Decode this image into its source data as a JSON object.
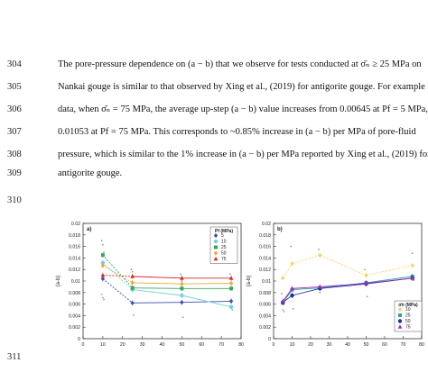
{
  "page": {
    "line_numbers": [
      "304",
      "305",
      "306",
      "307",
      "308",
      "309",
      "310",
      "311"
    ],
    "lines": [
      "The pore-pressure dependence on (a − b) that we observe for tests conducted at σ̄ₙ ≥ 25 MPa on",
      "Nankai gouge is similar to that observed by Xing et al., (2019) for antigorite gouge. For example in our",
      "data, when σ̄ₙ = 75 MPa, the average up-step (a − b) value increases from 0.00645 at Pf = 5 MPa, to",
      "0.01053 at Pf = 75 MPa. This corresponds to ~0.85% increase in (a − b) per MPa of pore-fluid",
      "pressure, which is similar to the 1% increase in (a − b) per MPa reported by Xing et al., (2019) for",
      "antigorite gouge."
    ]
  },
  "colors": {
    "c5": "#3a4fb3",
    "c10": "#6fd4e0",
    "c25": "#3aa55a",
    "c50": "#e8a838",
    "c75": "#d12a2a",
    "n10": "#f3d36b",
    "n25": "#2aa0a0",
    "n50": "#1f2f9a",
    "n75": "#a02ab8"
  },
  "chart_data": [
    {
      "type": "line",
      "panel_label": "a)",
      "xlabel": "Effective normal stress (MPa)",
      "ylabel": "(a-b)",
      "xlim": [
        0,
        80
      ],
      "ylim": [
        0,
        0.02
      ],
      "xticks": [
        "0",
        "10",
        "20",
        "30",
        "40",
        "50",
        "60",
        "70",
        "80"
      ],
      "yticks": [
        "0",
        "0.002",
        "0.004",
        "0.006",
        "0.008",
        "0.01",
        "0.012",
        "0.014",
        "0.016",
        "0.018",
        "0.02"
      ],
      "legend_title": "Pf (MPa)",
      "legend_position": "top-right",
      "x": [
        10,
        25,
        50,
        75
      ],
      "series": [
        {
          "name": "5",
          "color_key": "c5",
          "values": [
            0.0104,
            0.0062,
            0.0063,
            0.0065
          ]
        },
        {
          "name": "10",
          "color_key": "c10",
          "values": [
            0.0132,
            0.0085,
            0.0075,
            0.0055
          ]
        },
        {
          "name": "25",
          "color_key": "c25",
          "values": [
            0.0145,
            0.0088,
            0.0087,
            0.0087
          ]
        },
        {
          "name": "50",
          "color_key": "c50",
          "values": [
            0.0127,
            0.0097,
            0.0095,
            0.0096
          ]
        },
        {
          "name": "75",
          "color_key": "c75",
          "values": [
            0.011,
            0.0108,
            0.0105,
            0.0105
          ]
        }
      ],
      "scatter": {
        "x": [
          10,
          10,
          10,
          10,
          10,
          10,
          25,
          25,
          25,
          50,
          50,
          50,
          75,
          75,
          75
        ],
        "y": [
          0.017,
          0.0163,
          0.015,
          0.0077,
          0.0071,
          0.0068,
          0.012,
          0.0116,
          0.0041,
          0.0112,
          0.01,
          0.0037,
          0.0112,
          0.0085,
          0.005
        ]
      }
    },
    {
      "type": "line",
      "panel_label": "b)",
      "xlabel": "Pore-fluid pressure (MPa)",
      "ylabel": "(a-b)",
      "xlim": [
        0,
        80
      ],
      "ylim": [
        0,
        0.02
      ],
      "xticks": [
        "0",
        "10",
        "20",
        "30",
        "40",
        "50",
        "60",
        "70",
        "80"
      ],
      "yticks": [
        "0",
        "0.002",
        "0.004",
        "0.006",
        "0.008",
        "0.01",
        "0.012",
        "0.014",
        "0.016",
        "0.018",
        "0.02"
      ],
      "legend_title": "σ̄n (MPa)",
      "legend_position": "bottom-right",
      "x": [
        5,
        10,
        25,
        50,
        75
      ],
      "series": [
        {
          "name": "10",
          "color_key": "n10",
          "values": [
            0.0105,
            0.013,
            0.0145,
            0.011,
            0.0127
          ]
        },
        {
          "name": "25",
          "color_key": "n25",
          "values": [
            0.0062,
            0.0085,
            0.0088,
            0.0097,
            0.0108
          ]
        },
        {
          "name": "50",
          "color_key": "n50",
          "values": [
            0.0063,
            0.0075,
            0.0087,
            0.0095,
            0.0105
          ]
        },
        {
          "name": "75",
          "color_key": "n75",
          "values": [
            0.0065,
            0.0087,
            0.009,
            0.0096,
            0.0105
          ]
        }
      ],
      "scatter": {
        "x": [
          5,
          5,
          5,
          10,
          10,
          10,
          25,
          25,
          50,
          50,
          75,
          75
        ],
        "y": [
          0.0078,
          0.005,
          0.0047,
          0.016,
          0.0072,
          0.0052,
          0.0155,
          0.008,
          0.0073,
          0.012,
          0.0148,
          0.0101
        ]
      }
    }
  ]
}
